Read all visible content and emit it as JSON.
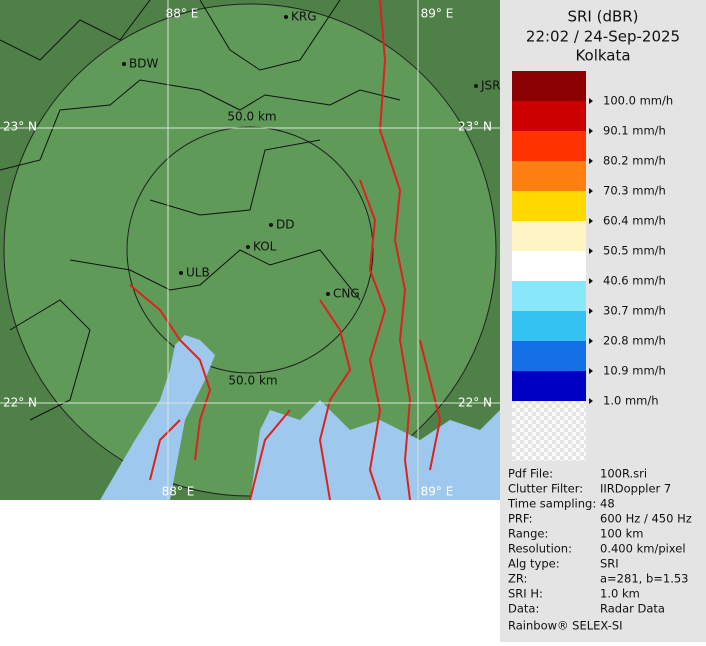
{
  "header": {
    "title": "SRI (dBR)",
    "time": "22:02 / 24-Sep-2025",
    "site": "Kolkata"
  },
  "legend": {
    "entries": [
      {
        "color": "#8b0000",
        "label": "100.0 mm/h"
      },
      {
        "color": "#cc0000",
        "label": "90.1 mm/h"
      },
      {
        "color": "#ff3300",
        "label": "80.2 mm/h"
      },
      {
        "color": "#ff7f10",
        "label": "70.3 mm/h"
      },
      {
        "color": "#ffd800",
        "label": "60.4 mm/h"
      },
      {
        "color": "#fff5c4",
        "label": "50.5 mm/h"
      },
      {
        "color": "#ffffff",
        "label": "40.6 mm/h"
      },
      {
        "color": "#86e8f8",
        "label": "30.7 mm/h"
      },
      {
        "color": "#34c2f2",
        "label": "20.8 mm/h"
      },
      {
        "color": "#1470e6",
        "label": "10.9 mm/h"
      },
      {
        "color": "#0000c4",
        "label": "1.0 mm/h"
      }
    ]
  },
  "map": {
    "grid_labels": [
      "88° E",
      "89° E",
      "23° N",
      "23° N",
      "22° N",
      "22° N",
      "88° E",
      "89° E"
    ],
    "cities": [
      "KRG",
      "BDW",
      "JSR",
      "DD",
      "KOL",
      "ULB",
      "CNG"
    ],
    "range_labels": [
      "50.0 km",
      "50.0 km"
    ]
  },
  "info": {
    "rows": [
      [
        "Pdf File:",
        "100R.sri"
      ],
      [
        "Clutter Filter:",
        "IIRDoppler 7"
      ],
      [
        "Time sampling:",
        "48"
      ],
      [
        "PRF:",
        "600 Hz / 450 Hz"
      ],
      [
        "Range:",
        "100 km"
      ],
      [
        "Resolution:",
        "0.400 km/pixel"
      ],
      [
        "Alg type:",
        "SRI"
      ],
      [
        "ZR:",
        "a=281, b=1.53"
      ],
      [
        "SRI H:",
        "1.0 km"
      ],
      [
        "Data:",
        "Radar Data"
      ]
    ]
  },
  "footer": "Rainbow® SELEX-SI"
}
